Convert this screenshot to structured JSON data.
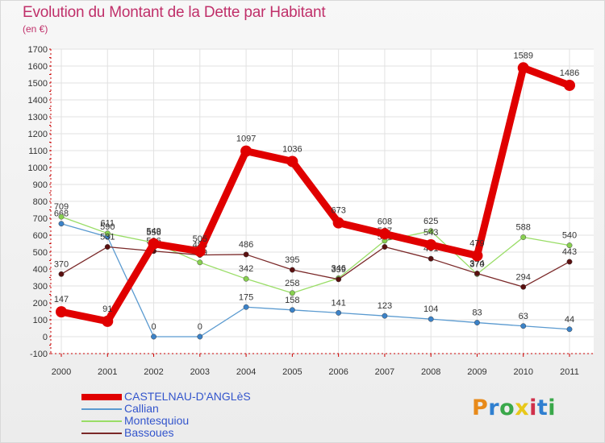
{
  "header": {
    "title": "Evolution du Montant de la Dette par Habitant",
    "subtitle": "(en €)"
  },
  "brand": {
    "text": "Proxiti",
    "colors": [
      "#e88a1a",
      "#2f7fd0",
      "#3aa84a",
      "#e8c81a",
      "#d0304a",
      "#2f7fd0",
      "#3aa84a"
    ]
  },
  "chart_data": {
    "type": "line",
    "x": [
      "2000",
      "2001",
      "2002",
      "2003",
      "2004",
      "2005",
      "2006",
      "2007",
      "2008",
      "2009",
      "2010",
      "2011"
    ],
    "ylim": [
      -100,
      1700
    ],
    "yticks": [
      "-100",
      "0",
      "100",
      "200",
      "300",
      "400",
      "500",
      "600",
      "700",
      "800",
      "900",
      "1000",
      "1100",
      "1200",
      "1300",
      "1400",
      "1500",
      "1600",
      "1700"
    ],
    "grid": true,
    "legend_position": "bottom-left",
    "series": [
      {
        "name": "CASTELNAU-D'ANGLèS",
        "color": "#e00000",
        "emphasis": true,
        "values": [
          147,
          91,
          549,
          505,
          1097,
          1036,
          673,
          608,
          543,
          479,
          1589,
          1486
        ],
        "labels": [
          "147",
          "91",
          "549",
          "505",
          "1097",
          "1036",
          "673",
          "608",
          "543",
          "479",
          "1589",
          "1486"
        ]
      },
      {
        "name": "Callian",
        "color": "#5a9ad0",
        "marker": "#3b82c8",
        "values": [
          668,
          590,
          0,
          0,
          175,
          158,
          141,
          123,
          104,
          83,
          63,
          44
        ],
        "labels": [
          "668",
          "590",
          "0",
          "0",
          "175",
          "158",
          "141",
          "123",
          "104",
          "83",
          "63",
          "44"
        ]
      },
      {
        "name": "Montesquiou",
        "color": "#99dd66",
        "marker": "#88d050",
        "values": [
          709,
          611,
          556,
          439,
          342,
          258,
          346,
          567,
          625,
          370,
          588,
          540
        ],
        "labels": [
          "709",
          "611",
          "556",
          "439",
          "342",
          "258",
          "346",
          "567",
          "625",
          "370",
          "588",
          "540"
        ]
      },
      {
        "name": "Bassoues",
        "color": "#7a2828",
        "marker": "#5a1010",
        "values": [
          370,
          531,
          506,
          483,
          486,
          395,
          339,
          531,
          461,
          374,
          294,
          443
        ],
        "labels": [
          "370",
          "531",
          "506",
          "483",
          "486",
          "395",
          "339",
          "531",
          "461",
          "374",
          "294",
          "443"
        ]
      }
    ]
  }
}
